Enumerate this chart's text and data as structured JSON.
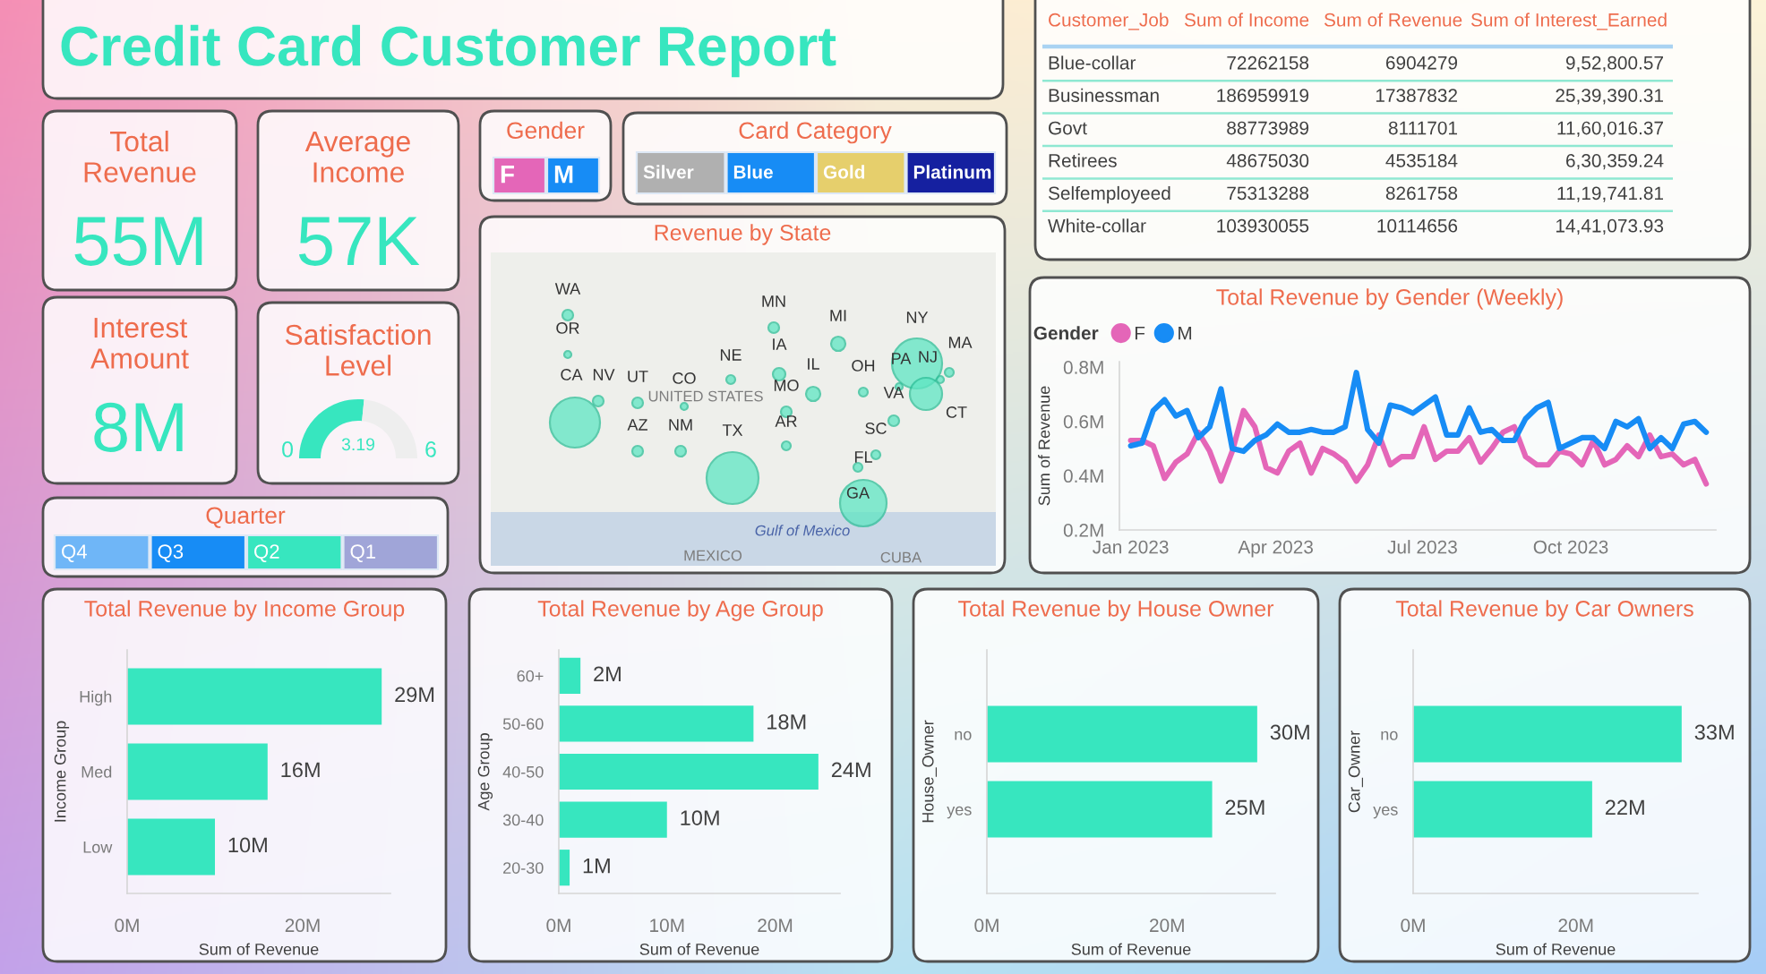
{
  "chart_data": [
    {
      "type": "other",
      "title": "Credit Card Customer Report"
    },
    {
      "type": "other",
      "xlabel": "Customer_Job",
      "categories": [
        "Blue-collar",
        "Businessman",
        "Govt",
        "Retirees",
        "Selfemployeed",
        "White-collar"
      ],
      "series": [
        {
          "name": "Sum of Income",
          "values": [
            72262158,
            186959919,
            88773989,
            48675030,
            75313288,
            103930055
          ]
        },
        {
          "name": "Sum of Revenue",
          "values": [
            6904279,
            17387832,
            8111701,
            4535184,
            8261758,
            10114656
          ]
        },
        {
          "name": "Sum of Interest_Earned",
          "values": [
            952800.57,
            2539390.31,
            1160016.37,
            630359.24,
            1119741.81,
            1441073.93
          ],
          "value_labels": [
            "9,52,800.57",
            "25,39,390.31",
            "11,60,016.37",
            "6,30,359.24",
            "11,19,741.81",
            "14,41,073.93"
          ]
        }
      ],
      "data_labels": true
    },
    {
      "type": "other",
      "title": "Total Revenue",
      "annotations": [
        "55M"
      ]
    },
    {
      "type": "other",
      "title": "Average Income",
      "annotations": [
        "57K"
      ]
    },
    {
      "type": "other",
      "title": "Gender",
      "categories": [
        "F",
        "M"
      ],
      "colors": [
        "#e466b8",
        "#178cf5"
      ]
    },
    {
      "type": "other",
      "title": "Card Category",
      "categories": [
        "Silver",
        "Blue",
        "Gold",
        "Platinum"
      ],
      "colors": [
        "#b0b0b0",
        "#178cf5",
        "#e6cf6c",
        "#1520a0"
      ]
    },
    {
      "type": "other",
      "title": "Interest Amount",
      "annotations": [
        "8M"
      ]
    },
    {
      "type": "donut",
      "title": "Satisfaction Level",
      "categories": [
        null,
        null
      ],
      "values": [
        3.19,
        2.81
      ],
      "colors": [
        "#37e6bf",
        "#eeeeee"
      ],
      "value_labels": [
        "3.19",
        null
      ],
      "annotations": [
        "0",
        "6"
      ]
    },
    {
      "type": "other",
      "title": "Revenue by State",
      "annotations": [
        "WA",
        "OR",
        "CA",
        "NV",
        "UT",
        "CO",
        "NE",
        "IA",
        "MN",
        "MI",
        "IL",
        "OH",
        "NY",
        "MA",
        "PA",
        "NJ",
        "CT",
        "VA",
        "MO",
        "AR",
        "AZ",
        "NM",
        "TX",
        "SC",
        "FL",
        "GA",
        "UNITED STATES",
        "Gulf of Mexico",
        "MEXICO",
        "CUBA"
      ]
    },
    {
      "type": "line",
      "title": "Total Revenue by Gender (Weekly)",
      "ylabel": "Sum of Revenue",
      "legend_title": "Gender",
      "legend": "top left",
      "x": [
        "2023-01-01",
        "2023-01-08",
        "2023-01-15",
        "2023-01-22",
        "2023-01-29",
        "2023-02-05",
        "2023-02-12",
        "2023-02-19",
        "2023-02-26",
        "2023-03-05",
        "2023-03-12",
        "2023-03-19",
        "2023-03-26",
        "2023-04-02",
        "2023-04-09",
        "2023-04-16",
        "2023-04-23",
        "2023-04-30",
        "2023-05-07",
        "2023-05-14",
        "2023-05-21",
        "2023-05-28",
        "2023-06-04",
        "2023-06-11",
        "2023-06-18",
        "2023-06-25",
        "2023-07-02",
        "2023-07-09",
        "2023-07-16",
        "2023-07-23",
        "2023-07-30",
        "2023-08-06",
        "2023-08-13",
        "2023-08-20",
        "2023-08-27",
        "2023-09-03",
        "2023-09-10",
        "2023-09-17",
        "2023-09-24",
        "2023-10-01",
        "2023-10-08",
        "2023-10-15",
        "2023-10-22",
        "2023-10-29",
        "2023-11-05",
        "2023-11-12",
        "2023-11-19",
        "2023-11-26",
        "2023-12-03",
        "2023-12-10",
        "2023-12-17",
        "2023-12-24"
      ],
      "series": [
        {
          "name": "F",
          "color": "#e466b8",
          "values": [
            0.53,
            0.53,
            0.51,
            0.39,
            0.45,
            0.48,
            0.56,
            0.49,
            0.38,
            0.49,
            0.64,
            0.58,
            0.43,
            0.41,
            0.49,
            0.52,
            0.41,
            0.5,
            0.48,
            0.45,
            0.38,
            0.44,
            0.55,
            0.44,
            0.47,
            0.47,
            0.58,
            0.46,
            0.49,
            0.49,
            0.54,
            0.45,
            0.5,
            0.56,
            0.58,
            0.47,
            0.44,
            0.44,
            0.49,
            0.48,
            0.44,
            0.53,
            0.44,
            0.46,
            0.51,
            0.47,
            0.55,
            0.47,
            0.48,
            0.44,
            0.46,
            0.37
          ]
        },
        {
          "name": "M",
          "color": "#178cf5",
          "values": [
            0.51,
            0.52,
            0.64,
            0.68,
            0.62,
            0.64,
            0.54,
            0.58,
            0.72,
            0.5,
            0.49,
            0.53,
            0.55,
            0.59,
            0.56,
            0.56,
            0.57,
            0.56,
            0.56,
            0.58,
            0.78,
            0.57,
            0.52,
            0.66,
            0.65,
            0.63,
            0.66,
            0.69,
            0.55,
            0.55,
            0.65,
            0.56,
            0.57,
            0.53,
            0.53,
            0.61,
            0.65,
            0.67,
            0.5,
            0.52,
            0.54,
            0.54,
            0.5,
            0.6,
            0.58,
            0.61,
            0.5,
            0.54,
            0.5,
            0.59,
            0.6,
            0.56
          ]
        }
      ],
      "xlim": [
        "2022-12-25",
        "2023-12-30"
      ],
      "xticks": [
        {
          "value": "2023-01-01",
          "label": "Jan 2023"
        },
        {
          "value": "2023-04-01",
          "label": "Apr 2023"
        },
        {
          "value": "2023-07-01",
          "label": "Jul 2023"
        },
        {
          "value": "2023-10-01",
          "label": "Oct 2023"
        }
      ],
      "ylim": [
        0.2,
        0.82
      ],
      "yticks": [
        {
          "value": 0.2,
          "label": "0.2M"
        },
        {
          "value": 0.4,
          "label": "0.4M"
        },
        {
          "value": 0.6,
          "label": "0.6M"
        },
        {
          "value": 0.8,
          "label": "0.8M"
        }
      ]
    },
    {
      "type": "other",
      "title": "Quarter",
      "categories": [
        "Q4",
        "Q3",
        "Q2",
        "Q1"
      ],
      "colors": [
        "#6fb6f7",
        "#178cf5",
        "#37e6bf",
        "#a0a5d8"
      ]
    },
    {
      "type": "bar",
      "orientation": "horizontal",
      "title": "Total Revenue by Income Group",
      "xlabel": "Sum of Revenue",
      "ylabel": "Income Group",
      "categories": [
        "High",
        "Med",
        "Low"
      ],
      "values": [
        29,
        16,
        10
      ],
      "color": "#37e6bf",
      "value_labels": [
        "29M",
        "16M",
        "10M"
      ],
      "xlim": [
        0,
        30
      ],
      "xticks": [
        {
          "value": 0,
          "label": "0M"
        },
        {
          "value": 20,
          "label": "20M"
        }
      ]
    },
    {
      "type": "bar",
      "orientation": "horizontal",
      "title": "Total Revenue by Age Group",
      "xlabel": "Sum of Revenue",
      "ylabel": "Age Group",
      "categories": [
        "60+",
        "50-60",
        "40-50",
        "30-40",
        "20-30"
      ],
      "values": [
        2,
        18,
        24,
        10,
        1
      ],
      "color": "#37e6bf",
      "value_labels": [
        "2M",
        "18M",
        "24M",
        "10M",
        "1M"
      ],
      "xlim": [
        0,
        26
      ],
      "xticks": [
        {
          "value": 0,
          "label": "0M"
        },
        {
          "value": 10,
          "label": "10M"
        },
        {
          "value": 20,
          "label": "20M"
        }
      ]
    },
    {
      "type": "bar",
      "orientation": "horizontal",
      "title": "Total Revenue by House Owner",
      "xlabel": "Sum of Revenue",
      "ylabel": "House_Owner",
      "categories": [
        "no",
        "yes"
      ],
      "values": [
        30,
        25
      ],
      "color": "#37e6bf",
      "value_labels": [
        "30M",
        "25M"
      ],
      "xlim": [
        0,
        32
      ],
      "xticks": [
        {
          "value": 0,
          "label": "0M"
        },
        {
          "value": 20,
          "label": "20M"
        }
      ]
    },
    {
      "type": "bar",
      "orientation": "horizontal",
      "title": "Total Revenue by Car Owners",
      "xlabel": "Sum of Revenue",
      "ylabel": "Car_Owner",
      "categories": [
        "no",
        "yes"
      ],
      "values": [
        33,
        22
      ],
      "color": "#37e6bf",
      "value_labels": [
        "33M",
        "22M"
      ],
      "xlim": [
        0,
        35
      ],
      "xticks": [
        {
          "value": 0,
          "label": "0M"
        },
        {
          "value": 20,
          "label": "20M"
        }
      ]
    }
  ]
}
